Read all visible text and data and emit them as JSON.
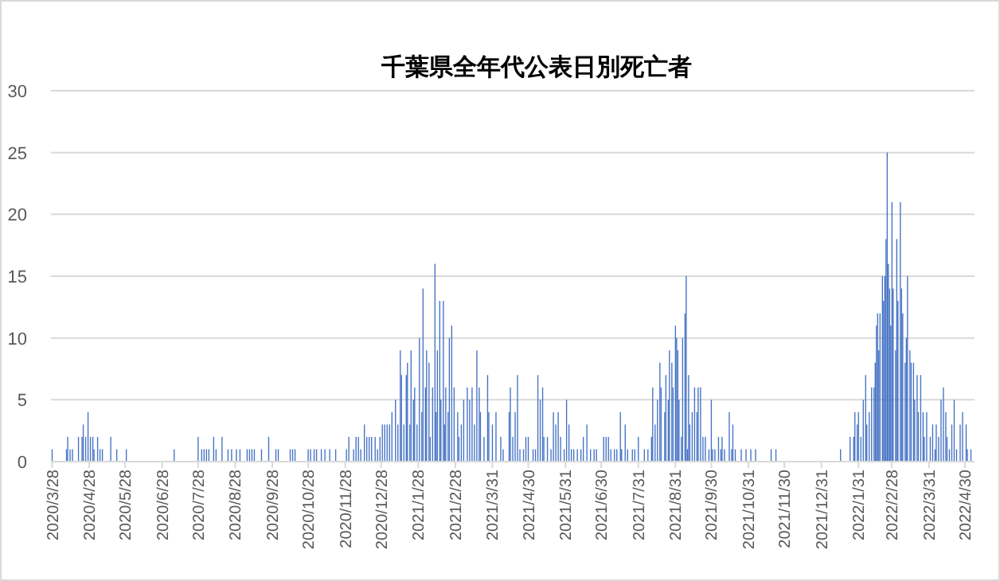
{
  "chart_data": {
    "type": "bar",
    "title": "千葉県全年代公表日別死亡者",
    "color": "#4472c4",
    "grid": "y",
    "xlim": [
      "2020-03-27",
      "2022-05-08"
    ],
    "ylim": [
      0,
      30
    ],
    "yticks": [
      0,
      5,
      10,
      15,
      20,
      25,
      30
    ],
    "xticks": [
      {
        "value": "2020-03-28",
        "label": "2020/3/28"
      },
      {
        "value": "2020-04-28",
        "label": "2020/4/28"
      },
      {
        "value": "2020-05-28",
        "label": "2020/5/28"
      },
      {
        "value": "2020-06-28",
        "label": "2020/6/28"
      },
      {
        "value": "2020-07-28",
        "label": "2020/7/28"
      },
      {
        "value": "2020-08-28",
        "label": "2020/8/28"
      },
      {
        "value": "2020-09-28",
        "label": "2020/9/28"
      },
      {
        "value": "2020-10-28",
        "label": "2020/10/28"
      },
      {
        "value": "2020-11-28",
        "label": "2020/11/28"
      },
      {
        "value": "2020-12-28",
        "label": "2020/12/28"
      },
      {
        "value": "2021-01-28",
        "label": "2021/1/28"
      },
      {
        "value": "2021-02-28",
        "label": "2021/2/28"
      },
      {
        "value": "2021-03-31",
        "label": "2021/3/31"
      },
      {
        "value": "2021-04-30",
        "label": "2021/4/30"
      },
      {
        "value": "2021-05-31",
        "label": "2021/5/31"
      },
      {
        "value": "2021-06-30",
        "label": "2021/6/30"
      },
      {
        "value": "2021-07-31",
        "label": "2021/7/31"
      },
      {
        "value": "2021-08-31",
        "label": "2021/8/31"
      },
      {
        "value": "2021-09-30",
        "label": "2021/9/30"
      },
      {
        "value": "2021-10-31",
        "label": "2021/10/31"
      },
      {
        "value": "2021-11-30",
        "label": "2021/11/30"
      },
      {
        "value": "2021-12-31",
        "label": "2021/12/31"
      },
      {
        "value": "2022-01-31",
        "label": "2022/1/31"
      },
      {
        "value": "2022-02-28",
        "label": "2022/2/28"
      },
      {
        "value": "2022-03-31",
        "label": "2022/3/31"
      },
      {
        "value": "2022-04-30",
        "label": "2022/4/30"
      }
    ],
    "x": [
      "2020-03-28",
      "2020-04-09",
      "2020-04-10",
      "2020-04-12",
      "2020-04-14",
      "2020-04-19",
      "2020-04-22",
      "2020-04-23",
      "2020-04-25",
      "2020-04-27",
      "2020-04-29",
      "2020-05-01",
      "2020-05-02",
      "2020-05-05",
      "2020-05-07",
      "2020-05-09",
      "2020-05-16",
      "2020-05-21",
      "2020-05-29",
      "2020-07-08",
      "2020-07-28",
      "2020-07-31",
      "2020-08-02",
      "2020-08-04",
      "2020-08-06",
      "2020-08-10",
      "2020-08-12",
      "2020-08-17",
      "2020-08-22",
      "2020-08-25",
      "2020-08-29",
      "2020-09-01",
      "2020-09-07",
      "2020-09-09",
      "2020-09-11",
      "2020-09-13",
      "2020-09-19",
      "2020-09-25",
      "2020-10-01",
      "2020-10-03",
      "2020-10-13",
      "2020-10-15",
      "2020-10-17",
      "2020-10-28",
      "2020-10-30",
      "2020-11-02",
      "2020-11-04",
      "2020-11-08",
      "2020-11-11",
      "2020-11-15",
      "2020-11-20",
      "2020-11-29",
      "2020-12-01",
      "2020-12-05",
      "2020-12-07",
      "2020-12-09",
      "2020-12-11",
      "2020-12-14",
      "2020-12-16",
      "2020-12-18",
      "2020-12-20",
      "2020-12-23",
      "2020-12-25",
      "2020-12-27",
      "2020-12-29",
      "2020-12-31",
      "2021-01-02",
      "2021-01-04",
      "2021-01-06",
      "2021-01-09",
      "2021-01-11",
      "2021-01-13",
      "2021-01-14",
      "2021-01-16",
      "2021-01-18",
      "2021-01-19",
      "2021-01-21",
      "2021-01-22",
      "2021-01-24",
      "2021-01-25",
      "2021-01-27",
      "2021-01-29",
      "2021-01-31",
      "2021-02-01",
      "2021-02-03",
      "2021-02-04",
      "2021-02-06",
      "2021-02-07",
      "2021-02-09",
      "2021-02-11",
      "2021-02-12",
      "2021-02-13",
      "2021-02-15",
      "2021-02-16",
      "2021-02-18",
      "2021-02-19",
      "2021-02-20",
      "2021-02-22",
      "2021-02-23",
      "2021-02-25",
      "2021-02-27",
      "2021-03-02",
      "2021-03-03",
      "2021-03-05",
      "2021-03-07",
      "2021-03-10",
      "2021-03-12",
      "2021-03-14",
      "2021-03-16",
      "2021-03-18",
      "2021-03-20",
      "2021-03-21",
      "2021-03-24",
      "2021-03-27",
      "2021-03-28",
      "2021-03-31",
      "2021-04-03",
      "2021-04-07",
      "2021-04-09",
      "2021-04-14",
      "2021-04-15",
      "2021-04-17",
      "2021-04-19",
      "2021-04-21",
      "2021-04-23",
      "2021-04-26",
      "2021-04-28",
      "2021-04-30",
      "2021-05-04",
      "2021-05-06",
      "2021-05-08",
      "2021-05-10",
      "2021-05-12",
      "2021-05-13",
      "2021-05-16",
      "2021-05-19",
      "2021-05-21",
      "2021-05-23",
      "2021-05-25",
      "2021-05-27",
      "2021-05-30",
      "2021-06-01",
      "2021-06-03",
      "2021-06-05",
      "2021-06-07",
      "2021-06-10",
      "2021-06-13",
      "2021-06-15",
      "2021-06-18",
      "2021-06-21",
      "2021-06-24",
      "2021-06-26",
      "2021-07-02",
      "2021-07-04",
      "2021-07-06",
      "2021-07-08",
      "2021-07-11",
      "2021-07-13",
      "2021-07-16",
      "2021-07-17",
      "2021-07-20",
      "2021-07-22",
      "2021-07-26",
      "2021-07-28",
      "2021-07-31",
      "2021-08-05",
      "2021-08-08",
      "2021-08-11",
      "2021-08-12",
      "2021-08-14",
      "2021-08-16",
      "2021-08-18",
      "2021-08-19",
      "2021-08-22",
      "2021-08-23",
      "2021-08-25",
      "2021-08-26",
      "2021-08-28",
      "2021-08-29",
      "2021-08-31",
      "2021-09-01",
      "2021-09-02",
      "2021-09-03",
      "2021-09-05",
      "2021-09-06",
      "2021-09-08",
      "2021-09-09",
      "2021-09-10",
      "2021-09-11",
      "2021-09-12",
      "2021-09-14",
      "2021-09-16",
      "2021-09-18",
      "2021-09-19",
      "2021-09-21",
      "2021-09-23",
      "2021-09-25",
      "2021-09-28",
      "2021-09-30",
      "2021-10-01",
      "2021-10-03",
      "2021-10-06",
      "2021-10-08",
      "2021-10-09",
      "2021-10-11",
      "2021-10-15",
      "2021-10-17",
      "2021-10-18",
      "2021-10-20",
      "2021-10-25",
      "2021-10-29",
      "2021-11-02",
      "2021-11-06",
      "2021-11-19",
      "2021-11-23",
      "2022-01-16",
      "2022-01-24",
      "2022-01-27",
      "2022-01-28",
      "2022-01-30",
      "2022-01-31",
      "2022-02-02",
      "2022-02-04",
      "2022-02-06",
      "2022-02-07",
      "2022-02-09",
      "2022-02-11",
      "2022-02-13",
      "2022-02-14",
      "2022-02-15",
      "2022-02-16",
      "2022-02-17",
      "2022-02-18",
      "2022-02-20",
      "2022-02-21",
      "2022-02-22",
      "2022-02-23",
      "2022-02-24",
      "2022-02-25",
      "2022-02-26",
      "2022-02-27",
      "2022-02-28",
      "2022-03-01",
      "2022-03-03",
      "2022-03-04",
      "2022-03-05",
      "2022-03-07",
      "2022-03-08",
      "2022-03-09",
      "2022-03-11",
      "2022-03-12",
      "2022-03-13",
      "2022-03-15",
      "2022-03-16",
      "2022-03-18",
      "2022-03-19",
      "2022-03-21",
      "2022-03-22",
      "2022-03-24",
      "2022-03-26",
      "2022-03-27",
      "2022-03-29",
      "2022-04-01",
      "2022-04-03",
      "2022-04-05",
      "2022-04-06",
      "2022-04-08",
      "2022-04-10",
      "2022-04-12",
      "2022-04-14",
      "2022-04-15",
      "2022-04-17",
      "2022-04-19",
      "2022-04-21",
      "2022-04-23",
      "2022-04-26",
      "2022-04-28",
      "2022-05-01",
      "2022-05-02",
      "2022-05-05"
    ],
    "values": [
      1,
      1,
      2,
      1,
      1,
      2,
      2,
      3,
      2,
      4,
      2,
      2,
      1,
      2,
      1,
      1,
      2,
      1,
      1,
      1,
      2,
      1,
      1,
      1,
      1,
      2,
      1,
      2,
      1,
      1,
      1,
      1,
      1,
      1,
      1,
      1,
      1,
      2,
      1,
      1,
      1,
      1,
      1,
      1,
      1,
      1,
      1,
      1,
      1,
      1,
      1,
      1,
      2,
      1,
      2,
      2,
      1,
      3,
      2,
      2,
      2,
      2,
      1,
      2,
      3,
      3,
      3,
      3,
      4,
      5,
      3,
      9,
      7,
      3,
      7,
      8,
      3,
      9,
      5,
      6,
      3,
      10,
      4,
      14,
      6,
      9,
      8,
      2,
      6,
      16,
      4,
      9,
      13,
      5,
      13,
      3,
      6,
      4,
      10,
      11,
      6,
      4,
      2,
      3,
      5,
      6,
      5,
      6,
      3,
      9,
      6,
      4,
      2,
      7,
      4,
      3,
      4,
      2,
      1,
      4,
      6,
      2,
      4,
      7,
      1,
      1,
      2,
      2,
      1,
      1,
      7,
      5,
      6,
      2,
      2,
      1,
      4,
      3,
      4,
      2,
      1,
      5,
      3,
      1,
      1,
      1,
      1,
      2,
      3,
      1,
      1,
      1,
      2,
      2,
      2,
      1,
      1,
      1,
      4,
      1,
      3,
      1,
      1,
      1,
      2,
      1,
      1,
      2,
      6,
      3,
      5,
      8,
      6,
      4,
      7,
      5,
      9,
      8,
      6,
      11,
      10,
      9,
      5,
      2,
      10,
      12,
      15,
      1,
      7,
      3,
      4,
      6,
      4,
      6,
      6,
      2,
      2,
      1,
      5,
      1,
      1,
      2,
      1,
      2,
      1,
      4,
      1,
      3,
      1,
      1,
      1,
      1,
      1,
      1,
      1,
      1,
      2,
      2,
      4,
      3,
      4,
      2,
      5,
      7,
      3,
      4,
      6,
      6,
      8,
      11,
      12,
      9,
      12,
      15,
      13,
      15,
      18,
      25,
      16,
      14,
      11,
      21,
      14,
      9,
      18,
      13,
      21,
      14,
      12,
      8,
      10,
      15,
      9,
      8,
      8,
      5,
      7,
      4,
      7,
      4,
      2,
      4,
      2,
      3,
      1,
      3,
      2,
      5,
      6,
      4,
      2,
      1,
      3,
      5,
      1,
      3,
      4,
      3,
      1,
      1
    ]
  }
}
